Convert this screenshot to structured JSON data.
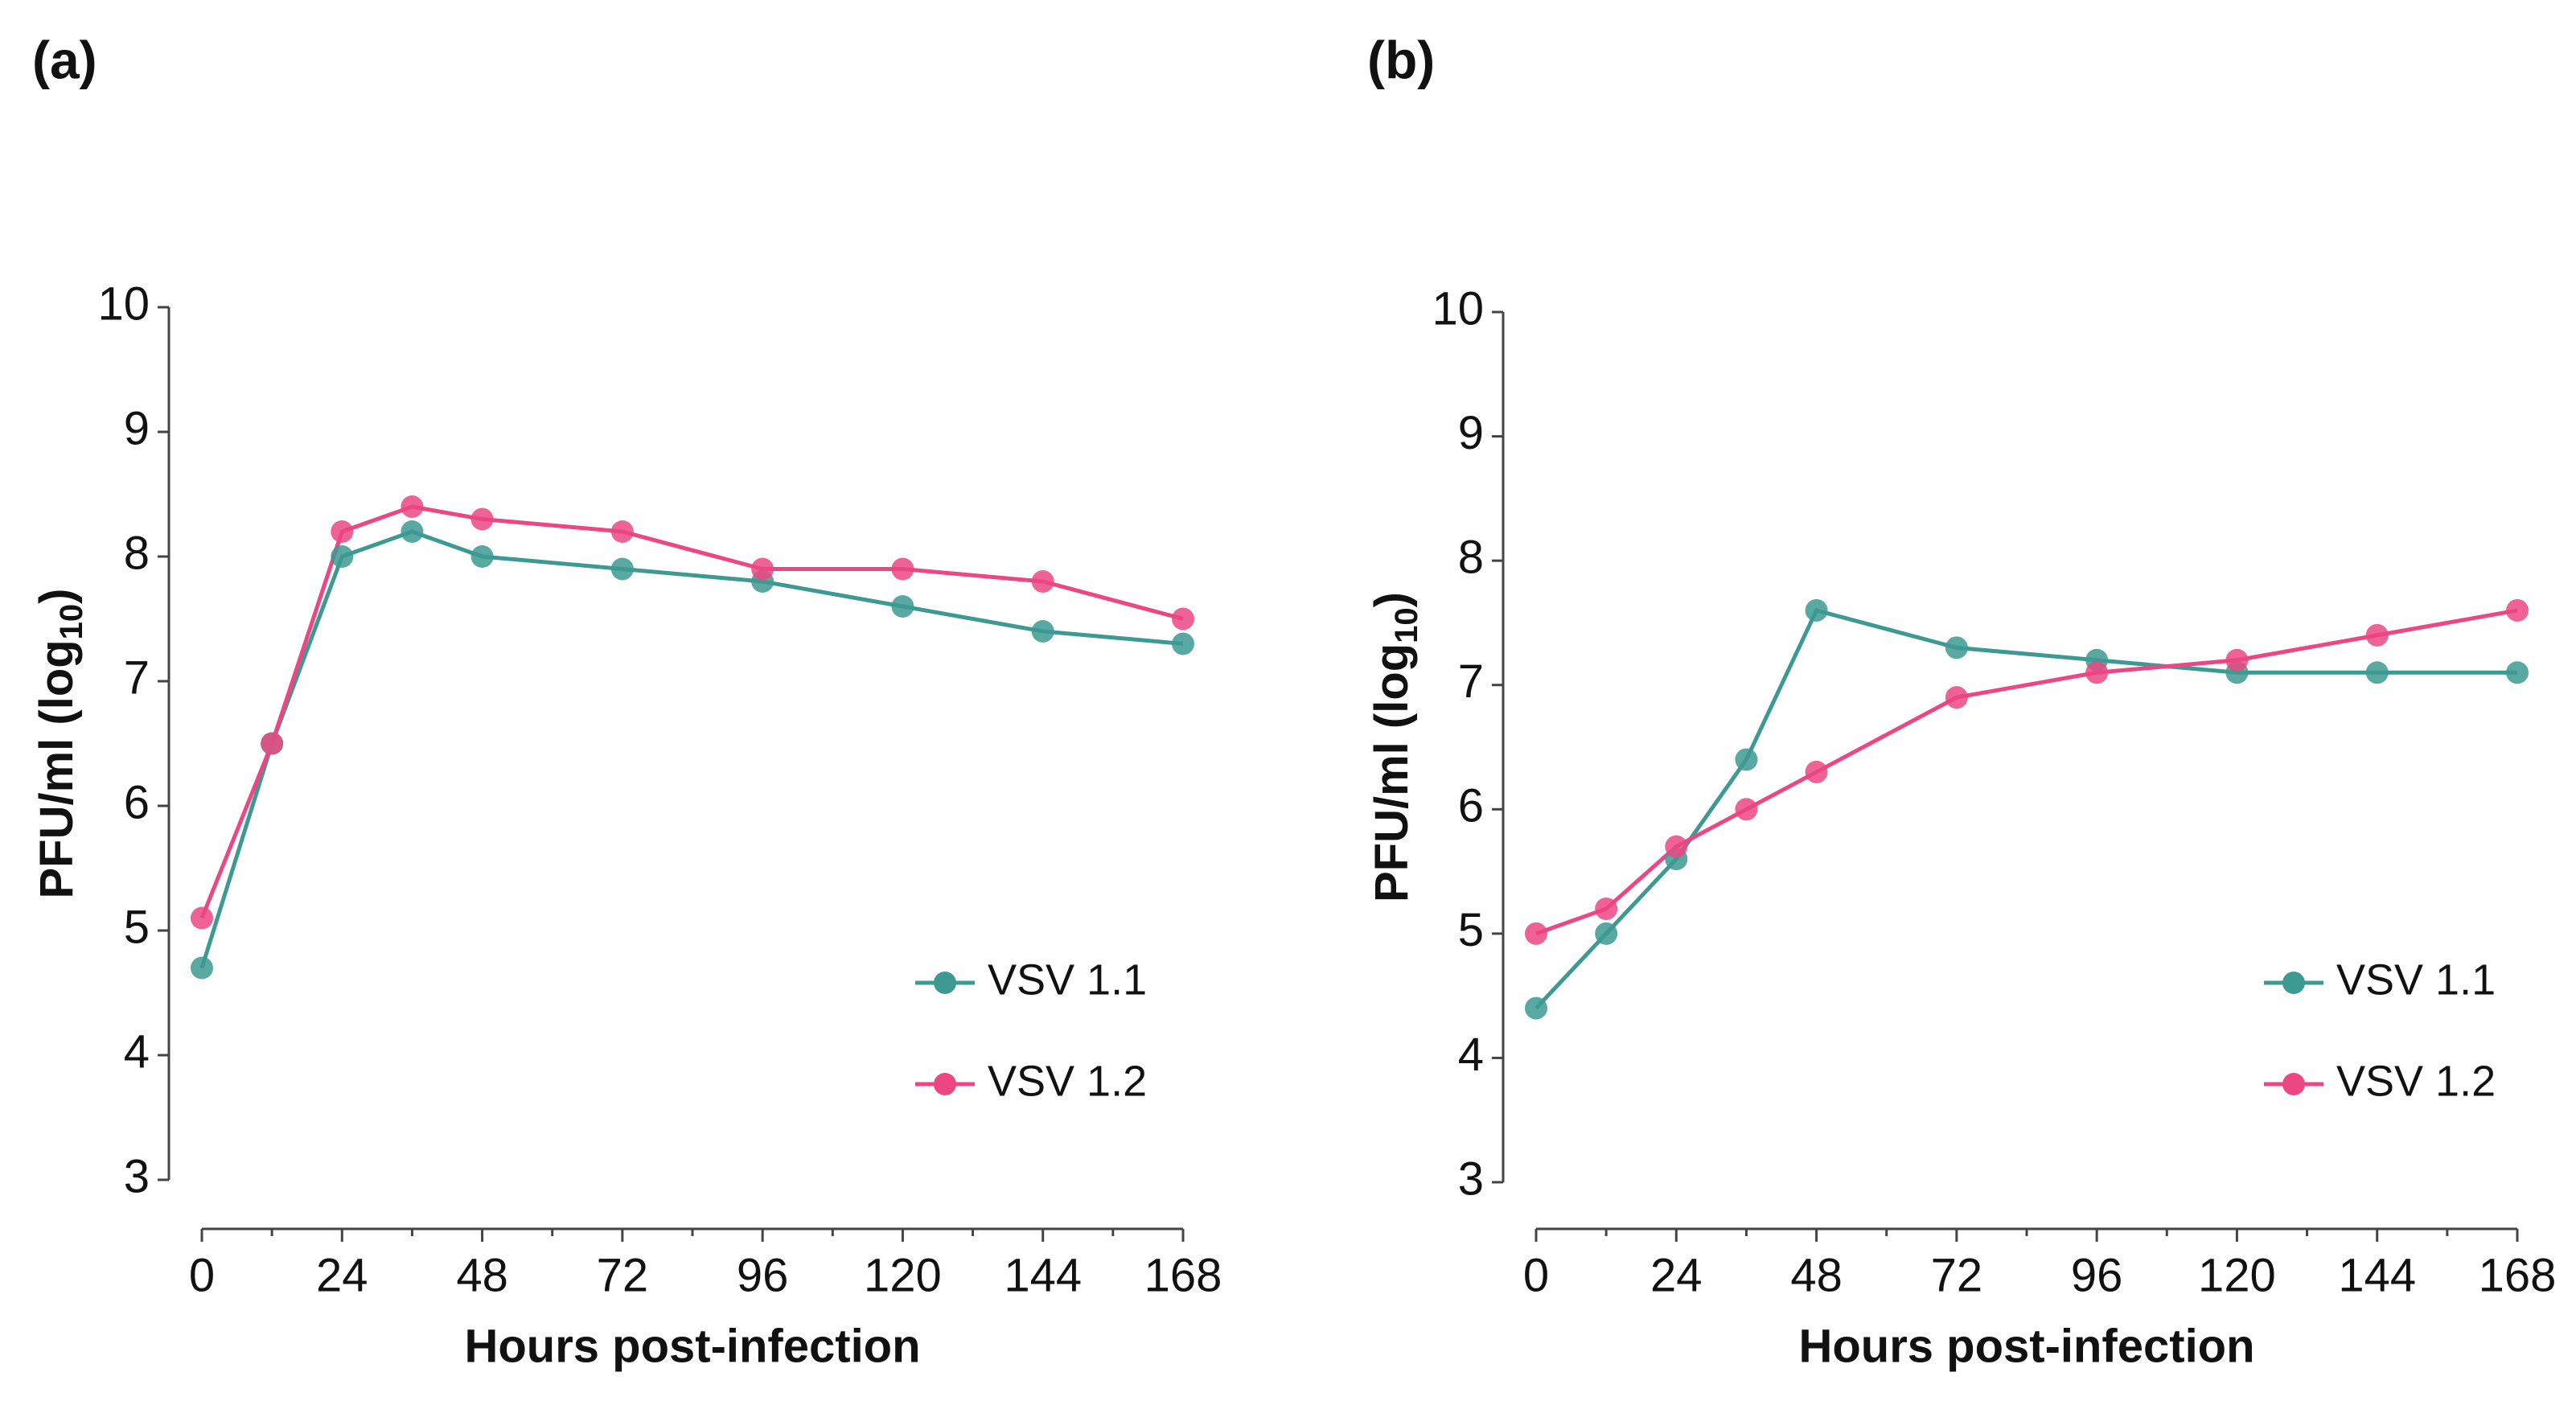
{
  "chart_data": [
    {
      "type": "line",
      "panel_label": "(a)",
      "x_label": "Hours post-infection",
      "y_label_parts": [
        "PFU/ml (log",
        "10",
        ")"
      ],
      "x": [
        0,
        12,
        24,
        36,
        48,
        72,
        96,
        120,
        144,
        168
      ],
      "series": [
        {
          "name": "VSV 1.1",
          "color": "#3c9a92",
          "values": [
            4.7,
            6.5,
            8.0,
            8.2,
            8.0,
            7.9,
            7.8,
            7.6,
            7.4,
            7.3
          ]
        },
        {
          "name": "VSV 1.2",
          "color": "#ec4683",
          "values": [
            5.1,
            6.5,
            8.2,
            8.4,
            8.3,
            8.2,
            7.9,
            7.9,
            7.8,
            7.5
          ]
        }
      ],
      "xlim": [
        0,
        168
      ],
      "xticks": [
        0,
        24,
        48,
        72,
        96,
        120,
        144,
        168
      ],
      "xminor_ticks": [
        12,
        36,
        60,
        84,
        108,
        132,
        156
      ],
      "ylim": [
        3,
        10
      ],
      "yticks": [
        3,
        4,
        5,
        6,
        7,
        8,
        9,
        10
      ],
      "grid": false,
      "legend": "lower right"
    },
    {
      "type": "line",
      "panel_label": "(b)",
      "x_label": "Hours post-infection",
      "y_label_parts": [
        "PFU/ml (log",
        "10",
        ")"
      ],
      "x": [
        0,
        12,
        24,
        36,
        48,
        72,
        96,
        120,
        144,
        168
      ],
      "series": [
        {
          "name": "VSV 1.1",
          "color": "#3c9a92",
          "values": [
            4.4,
            5.0,
            5.6,
            6.4,
            7.6,
            7.3,
            7.2,
            7.1,
            7.1,
            7.1
          ]
        },
        {
          "name": "VSV 1.2",
          "color": "#ec4683",
          "values": [
            5.0,
            5.2,
            5.7,
            6.0,
            6.3,
            6.9,
            7.1,
            7.2,
            7.4,
            7.6
          ]
        }
      ],
      "xlim": [
        0,
        168
      ],
      "xticks": [
        0,
        24,
        48,
        72,
        96,
        120,
        144,
        168
      ],
      "xminor_ticks": [
        12,
        36,
        60,
        84,
        108,
        132,
        156
      ],
      "ylim": [
        3,
        10
      ],
      "yticks": [
        3,
        4,
        5,
        6,
        7,
        8,
        9,
        10
      ],
      "grid": false,
      "legend": "lower right"
    }
  ]
}
